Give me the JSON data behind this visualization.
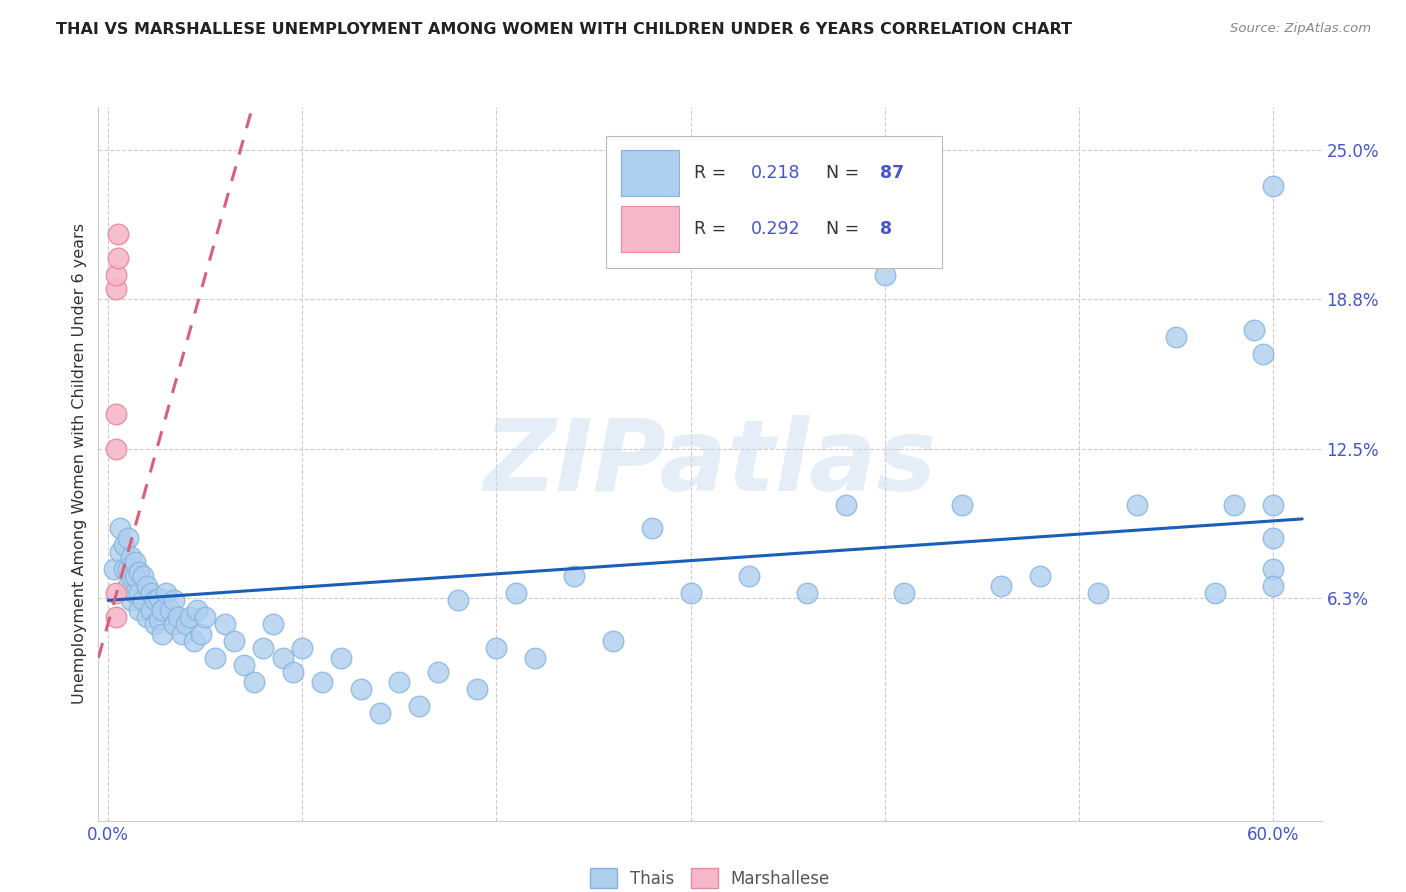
{
  "title": "THAI VS MARSHALLESE UNEMPLOYMENT AMONG WOMEN WITH CHILDREN UNDER 6 YEARS CORRELATION CHART",
  "source": "Source: ZipAtlas.com",
  "ylabel": "Unemployment Among Women with Children Under 6 years",
  "xlabel_ticks": [
    "0.0%",
    "",
    "",
    "",
    "",
    "",
    "60.0%"
  ],
  "xlabel_vals": [
    0.0,
    0.1,
    0.2,
    0.3,
    0.4,
    0.5,
    0.6
  ],
  "ylabel_ticks": [
    "6.3%",
    "12.5%",
    "18.8%",
    "25.0%"
  ],
  "ylabel_vals": [
    0.063,
    0.125,
    0.188,
    0.25
  ],
  "xlim": [
    -0.005,
    0.625
  ],
  "ylim": [
    -0.03,
    0.268
  ],
  "thai_R": 0.218,
  "thai_N": 87,
  "marsh_R": 0.292,
  "marsh_N": 8,
  "thai_color": "#aecfee",
  "thai_edge": "#85b3df",
  "marsh_color": "#f5b8c8",
  "marsh_edge": "#e88aa0",
  "trendline_thai_color": "#1a5eb8",
  "trendline_marsh_color": "#d9607a",
  "background": "#ffffff",
  "grid_color": "#cccccc",
  "title_color": "#222222",
  "label_color": "#4455cc",
  "watermark": "ZIPatlas",
  "thai_scatter_x": [
    0.003,
    0.006,
    0.006,
    0.008,
    0.008,
    0.01,
    0.01,
    0.01,
    0.012,
    0.012,
    0.012,
    0.014,
    0.014,
    0.014,
    0.016,
    0.016,
    0.016,
    0.018,
    0.018,
    0.02,
    0.02,
    0.022,
    0.022,
    0.024,
    0.024,
    0.026,
    0.026,
    0.028,
    0.028,
    0.03,
    0.032,
    0.034,
    0.034,
    0.036,
    0.038,
    0.04,
    0.042,
    0.044,
    0.046,
    0.048,
    0.05,
    0.055,
    0.06,
    0.065,
    0.07,
    0.075,
    0.08,
    0.085,
    0.09,
    0.095,
    0.1,
    0.11,
    0.12,
    0.13,
    0.14,
    0.15,
    0.16,
    0.17,
    0.18,
    0.19,
    0.2,
    0.21,
    0.22,
    0.24,
    0.26,
    0.28,
    0.3,
    0.33,
    0.36,
    0.38,
    0.4,
    0.41,
    0.44,
    0.46,
    0.48,
    0.51,
    0.53,
    0.55,
    0.57,
    0.58,
    0.59,
    0.595,
    0.6,
    0.6,
    0.6,
    0.6,
    0.6
  ],
  "thai_scatter_y": [
    0.075,
    0.082,
    0.092,
    0.075,
    0.085,
    0.068,
    0.075,
    0.088,
    0.062,
    0.072,
    0.08,
    0.065,
    0.072,
    0.078,
    0.058,
    0.065,
    0.074,
    0.062,
    0.072,
    0.055,
    0.068,
    0.058,
    0.065,
    0.052,
    0.062,
    0.054,
    0.063,
    0.048,
    0.058,
    0.065,
    0.058,
    0.052,
    0.062,
    0.055,
    0.048,
    0.052,
    0.055,
    0.045,
    0.058,
    0.048,
    0.055,
    0.038,
    0.052,
    0.045,
    0.035,
    0.028,
    0.042,
    0.052,
    0.038,
    0.032,
    0.042,
    0.028,
    0.038,
    0.025,
    0.015,
    0.028,
    0.018,
    0.032,
    0.062,
    0.025,
    0.042,
    0.065,
    0.038,
    0.072,
    0.045,
    0.092,
    0.065,
    0.072,
    0.065,
    0.102,
    0.198,
    0.065,
    0.102,
    0.068,
    0.072,
    0.065,
    0.102,
    0.172,
    0.065,
    0.102,
    0.175,
    0.165,
    0.235,
    0.075,
    0.088,
    0.068,
    0.102
  ],
  "marsh_scatter_x": [
    0.004,
    0.004,
    0.004,
    0.004,
    0.004,
    0.004,
    0.005,
    0.005
  ],
  "marsh_scatter_y": [
    0.055,
    0.065,
    0.125,
    0.14,
    0.192,
    0.198,
    0.205,
    0.215
  ],
  "thai_trendline_x": [
    0.0,
    0.615
  ],
  "thai_trendline_y": [
    0.062,
    0.096
  ],
  "marsh_trendline_x": [
    -0.005,
    0.075
  ],
  "marsh_trendline_y": [
    0.038,
    0.27
  ]
}
